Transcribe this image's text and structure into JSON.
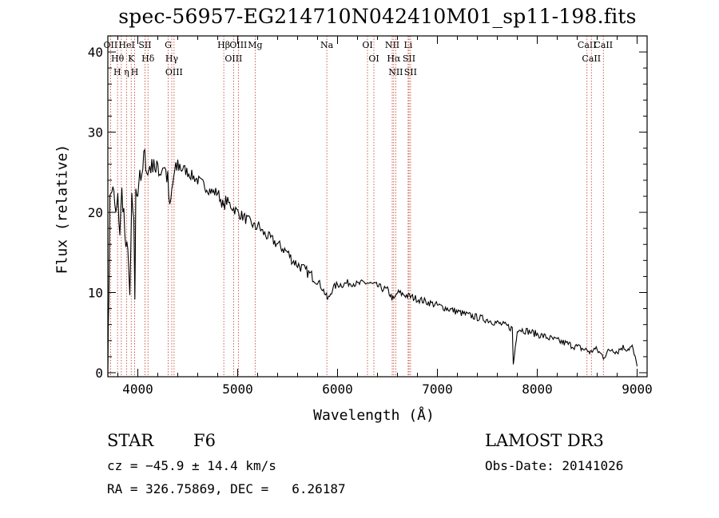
{
  "title": "spec-56957-EG214710N042410M01_sp11-198.fits",
  "footer": {
    "object_class": "STAR",
    "subclass": "F6",
    "redshift": "cz = −45.9 ± 14.4 km/s",
    "coords": "RA = 326.75869, DEC =   6.26187",
    "survey": "LAMOST DR3",
    "obs_date": "Obs-Date: 20141026"
  },
  "chart_data": {
    "type": "line",
    "title": "spec-56957-EG214710N042410M01_sp11-198.fits",
    "xlabel": "Wavelength (Å)",
    "ylabel": "Flux (relative)",
    "xlim": [
      3700,
      9100
    ],
    "ylim": [
      -0.5,
      42
    ],
    "xticks": [
      4000,
      5000,
      6000,
      7000,
      8000,
      9000
    ],
    "yticks": [
      0,
      10,
      20,
      30,
      40
    ],
    "grid": false,
    "series": [
      {
        "x": [
          3700,
          3710,
          3720,
          3740,
          3760,
          3780,
          3800,
          3820,
          3840,
          3860,
          3880,
          3900,
          3920,
          3940,
          3960,
          3970,
          3980,
          4000,
          4020,
          4040,
          4060,
          4080,
          4100,
          4120,
          4140,
          4160,
          4180,
          4200,
          4220,
          4240,
          4260,
          4280,
          4300,
          4320,
          4340,
          4360,
          4380,
          4400,
          4450,
          4500,
          4550,
          4600,
          4650,
          4700,
          4750,
          4800,
          4850,
          4861,
          4880,
          4920,
          4960,
          5000,
          5050,
          5100,
          5150,
          5180,
          5200,
          5250,
          5300,
          5350,
          5400,
          5450,
          5500,
          5550,
          5600,
          5650,
          5700,
          5750,
          5800,
          5850,
          5890,
          5900,
          5950,
          6000,
          6050,
          6100,
          6150,
          6200,
          6250,
          6300,
          6350,
          6400,
          6450,
          6500,
          6563,
          6600,
          6700,
          6800,
          6900,
          7000,
          7100,
          7200,
          7300,
          7400,
          7500,
          7600,
          7700,
          7750,
          7760,
          7800,
          7900,
          8000,
          8100,
          8200,
          8300,
          8400,
          8498,
          8542,
          8560,
          8600,
          8662,
          8700,
          8750,
          8800,
          8850,
          8900,
          8950,
          9000
        ],
        "y": [
          0.3,
          9.5,
          21.5,
          23.0,
          22.0,
          19.5,
          21.5,
          17.5,
          22.5,
          20.0,
          14.5,
          16.5,
          8.5,
          22.0,
          18.0,
          9.5,
          22.0,
          23.0,
          25.5,
          23.5,
          27.0,
          26.5,
          24.5,
          26.0,
          25.5,
          27.0,
          24.5,
          26.0,
          25.0,
          25.5,
          26.0,
          25.0,
          24.0,
          20.0,
          22.5,
          24.5,
          25.0,
          26.0,
          25.5,
          25.0,
          24.5,
          24.0,
          23.5,
          23.0,
          22.5,
          22.5,
          21.0,
          20.5,
          21.5,
          21.0,
          20.5,
          20.0,
          19.5,
          19.0,
          18.5,
          18.0,
          18.5,
          17.5,
          17.0,
          16.5,
          16.0,
          15.5,
          15.0,
          14.0,
          13.5,
          13.0,
          12.5,
          12.0,
          11.5,
          10.5,
          9.5,
          9.0,
          10.5,
          11.0,
          11.0,
          11.2,
          11.2,
          11.0,
          11.2,
          11.2,
          11.0,
          10.8,
          10.5,
          10.3,
          9.0,
          10.0,
          9.6,
          9.2,
          8.8,
          8.4,
          8.0,
          7.6,
          7.2,
          6.9,
          6.6,
          6.2,
          5.8,
          5.5,
          1.0,
          5.5,
          5.2,
          4.8,
          4.4,
          4.0,
          3.6,
          3.2,
          2.8,
          2.5,
          3.0,
          2.8,
          2.0,
          2.5,
          3.0,
          2.6,
          3.2,
          3.0,
          3.2,
          0.8
        ]
      }
    ],
    "lines": [
      {
        "wl": 3727,
        "top": "OII"
      },
      {
        "wl": 3797,
        "top": "Hθ"
      },
      {
        "wl": 3835,
        "top": "H η"
      },
      {
        "wl": 3889,
        "top": "HeI"
      },
      {
        "wl": 3934,
        "top": "K"
      },
      {
        "wl": 3968,
        "top": "H"
      },
      {
        "wl": 4072,
        "top": "SII"
      },
      {
        "wl": 4102,
        "top": "Hδ"
      },
      {
        "wl": 4304,
        "top": "G"
      },
      {
        "wl": 4340,
        "top": "Hγ"
      },
      {
        "wl": 4363,
        "top": "OIII"
      },
      {
        "wl": 4861,
        "top": "Hβ"
      },
      {
        "wl": 4959,
        "top": "OIII"
      },
      {
        "wl": 5007,
        "top": "OIII"
      },
      {
        "wl": 5175,
        "top": "Mg"
      },
      {
        "wl": 5893,
        "top": "Na"
      },
      {
        "wl": 6300,
        "top": "OI"
      },
      {
        "wl": 6364,
        "top": "OI"
      },
      {
        "wl": 6548,
        "top": "NII"
      },
      {
        "wl": 6563,
        "top": "Hα"
      },
      {
        "wl": 6583,
        "top": "NII"
      },
      {
        "wl": 6707,
        "top": "Li"
      },
      {
        "wl": 6716,
        "top": "SII"
      },
      {
        "wl": 6731,
        "top": "SII"
      },
      {
        "wl": 8498,
        "top": "CaII"
      },
      {
        "wl": 8542,
        "top": "CaII"
      },
      {
        "wl": 8662,
        "top": "CaII"
      }
    ]
  }
}
